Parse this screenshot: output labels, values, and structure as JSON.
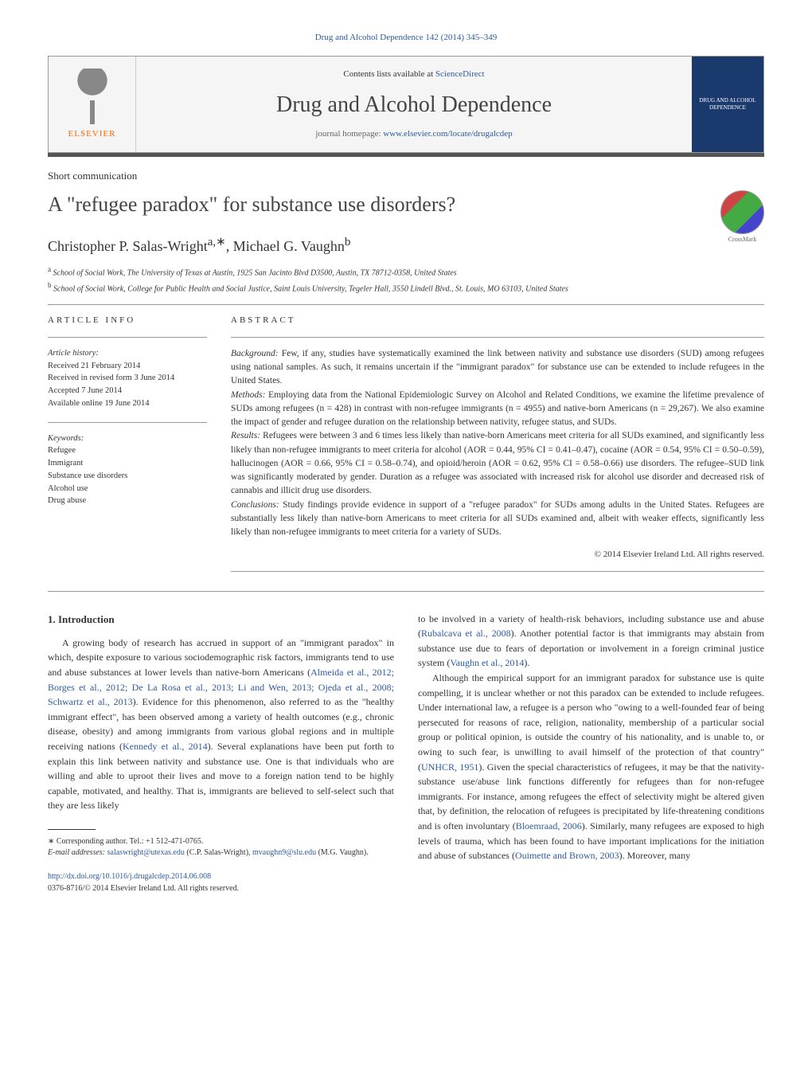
{
  "header": {
    "citation": "Drug and Alcohol Dependence 142 (2014) 345–349",
    "contents_prefix": "Contents lists available at ",
    "sciencedirect": "ScienceDirect",
    "journal": "Drug and Alcohol Dependence",
    "homepage_prefix": "journal homepage: ",
    "homepage_url": "www.elsevier.com/locate/drugalcdep",
    "publisher": "ELSEVIER",
    "cover_text": "DRUG AND ALCOHOL DEPENDENCE"
  },
  "article": {
    "type": "Short communication",
    "title": "A \"refugee paradox\" for substance use disorders?",
    "authors": "Christopher P. Salas-Wright",
    "author_sup_a": "a,∗",
    "author_sep": ", ",
    "author2": "Michael G. Vaughn",
    "author_sup_b": "b",
    "affil_a": "School of Social Work, The University of Texas at Austin, 1925 San Jacinto Blvd D3500, Austin, TX 78712-0358, United States",
    "affil_b": "School of Social Work, College for Public Health and Social Justice, Saint Louis University, Tegeler Hall, 3550 Lindell Blvd., St. Louis, MO 63103, United States"
  },
  "info": {
    "section_head": "article info",
    "history_label": "Article history:",
    "received": "Received 21 February 2014",
    "revised": "Received in revised form 3 June 2014",
    "accepted": "Accepted 7 June 2014",
    "online": "Available online 19 June 2014",
    "keywords_label": "Keywords:",
    "kw1": "Refugee",
    "kw2": "Immigrant",
    "kw3": "Substance use disorders",
    "kw4": "Alcohol use",
    "kw5": "Drug abuse"
  },
  "abstract": {
    "section_head": "abstract",
    "bg_label": "Background:",
    "bg_text": " Few, if any, studies have systematically examined the link between nativity and substance use disorders (SUD) among refugees using national samples. As such, it remains uncertain if the \"immigrant paradox\" for substance use can be extended to include refugees in the United States.",
    "methods_label": "Methods:",
    "methods_text": " Employing data from the National Epidemiologic Survey on Alcohol and Related Conditions, we examine the lifetime prevalence of SUDs among refugees (n = 428) in contrast with non-refugee immigrants (n = 4955) and native-born Americans (n = 29,267). We also examine the impact of gender and refugee duration on the relationship between nativity, refugee status, and SUDs.",
    "results_label": "Results:",
    "results_text": " Refugees were between 3 and 6 times less likely than native-born Americans meet criteria for all SUDs examined, and significantly less likely than non-refugee immigrants to meet criteria for alcohol (AOR = 0.44, 95% CI = 0.41–0.47), cocaine (AOR = 0.54, 95% CI = 0.50–0.59), hallucinogen (AOR = 0.66, 95% CI = 0.58–0.74), and opioid/heroin (AOR = 0.62, 95% CI = 0.58–0.66) use disorders. The refugee–SUD link was significantly moderated by gender. Duration as a refugee was associated with increased risk for alcohol use disorder and decreased risk of cannabis and illicit drug use disorders.",
    "concl_label": "Conclusions:",
    "concl_text": " Study findings provide evidence in support of a \"refugee paradox\" for SUDs among adults in the United States. Refugees are substantially less likely than native-born Americans to meet criteria for all SUDs examined and, albeit with weaker effects, significantly less likely than non-refugee immigrants to meet criteria for a variety of SUDs.",
    "copyright": "© 2014 Elsevier Ireland Ltd. All rights reserved."
  },
  "body": {
    "intro_head": "1. Introduction",
    "p1a": "A growing body of research has accrued in support of an \"immigrant paradox\" in which, despite exposure to various sociodemographic risk factors, immigrants tend to use and abuse substances at lower levels than native-born Americans (",
    "cite1": "Almeida et al., 2012; Borges et al., 2012; De La Rosa et al., 2013; Li and Wen, 2013; Ojeda et al., 2008; Schwartz et al., 2013",
    "p1b": "). Evidence for this phenomenon, also referred to as the \"healthy immigrant effect\", has been observed among a variety of health outcomes (e.g., chronic disease, obesity) and among immigrants from various global regions and in multiple receiving nations (",
    "cite2": "Kennedy et al., 2014",
    "p1c": "). Several explanations have been put forth to explain this link between nativity and substance use. One is that individuals who are willing and able to uproot their lives and move to a foreign nation tend to be highly capable, motivated, and healthy. That is, immigrants are believed to self-select such that they are less likely",
    "p2a": "to be involved in a variety of health-risk behaviors, including substance use and abuse (",
    "cite3": "Rubalcava et al., 2008",
    "p2b": "). Another potential factor is that immigrants may abstain from substance use due to fears of deportation or involvement in a foreign criminal justice system (",
    "cite4": "Vaughn et al., 2014",
    "p2c": ").",
    "p3a": "Although the empirical support for an immigrant paradox for substance use is quite compelling, it is unclear whether or not this paradox can be extended to include refugees. Under international law, a refugee is a person who \"owing to a well-founded fear of being persecuted for reasons of race, religion, nationality, membership of a particular social group or political opinion, is outside the country of his nationality, and is unable to, or owing to such fear, is unwilling to avail himself of the protection of that country\" (",
    "cite5": "UNHCR, 1951",
    "p3b": "). Given the special characteristics of refugees, it may be that the nativity-substance use/abuse link functions differently for refugees than for non-refugee immigrants. For instance, among refugees the effect of selectivity might be altered given that, by definition, the relocation of refugees is precipitated by life-threatening conditions and is often involuntary (",
    "cite6": "Bloemraad, 2006",
    "p3c": "). Similarly, many refugees are exposed to high levels of trauma, which has been found to have important implications for the initiation and abuse of substances (",
    "cite7": "Ouimette and Brown, 2003",
    "p3d": "). Moreover, many"
  },
  "footnote": {
    "corr": "∗ Corresponding author. Tel.: +1 512-471-0765.",
    "email_label": "E-mail addresses: ",
    "email1": "salaswright@utexas.edu",
    "email1_name": " (C.P. Salas-Wright), ",
    "email2": "mvaughn9@slu.edu",
    "email2_name": " (M.G. Vaughn)."
  },
  "doi": {
    "link": "http://dx.doi.org/10.1016/j.drugalcdep.2014.06.008",
    "issn": "0376-8716/© 2014 Elsevier Ireland Ltd. All rights reserved."
  }
}
